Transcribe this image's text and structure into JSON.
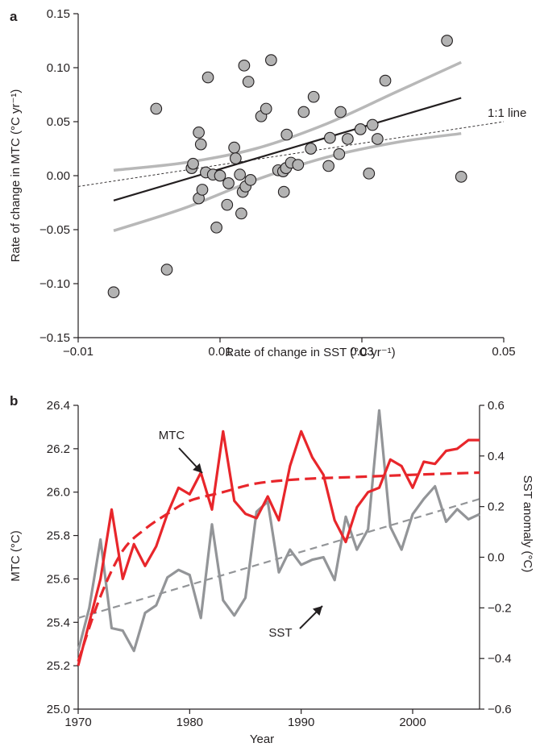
{
  "chart_data": [
    {
      "panel": "a",
      "type": "scatter",
      "xlabel": "Rate of change in SST (°C yr⁻¹)",
      "ylabel": "Rate of change in MTC (°C yr⁻¹)",
      "xlim": [
        -0.01,
        0.05
      ],
      "ylim": [
        -0.15,
        0.15
      ],
      "xticks": [
        -0.01,
        0.01,
        0.03,
        0.05
      ],
      "xtick_labels": [
        "−0.01",
        "0.01",
        "0.03",
        "0.05"
      ],
      "yticks": [
        -0.15,
        -0.1,
        -0.05,
        0.0,
        0.05,
        0.1,
        0.15
      ],
      "ytick_labels": [
        "−0.15",
        "−0.10",
        "−0.05",
        "0.00",
        "0.05",
        "0.10",
        "0.15"
      ],
      "points": [
        [
          -0.005,
          -0.108
        ],
        [
          0.001,
          0.062
        ],
        [
          0.0025,
          -0.087
        ],
        [
          0.006,
          0.007
        ],
        [
          0.0062,
          0.011
        ],
        [
          0.007,
          0.04
        ],
        [
          0.007,
          -0.021
        ],
        [
          0.0073,
          0.029
        ],
        [
          0.0075,
          -0.013
        ],
        [
          0.008,
          0.003
        ],
        [
          0.0083,
          0.091
        ],
        [
          0.009,
          0.001
        ],
        [
          0.0095,
          -0.048
        ],
        [
          0.01,
          0.0
        ],
        [
          0.011,
          -0.027
        ],
        [
          0.0112,
          -0.007
        ],
        [
          0.012,
          0.026
        ],
        [
          0.0122,
          0.016
        ],
        [
          0.0128,
          0.001
        ],
        [
          0.013,
          -0.035
        ],
        [
          0.0132,
          -0.015
        ],
        [
          0.0134,
          0.102
        ],
        [
          0.0136,
          -0.01
        ],
        [
          0.014,
          0.087
        ],
        [
          0.0143,
          -0.004
        ],
        [
          0.0158,
          0.055
        ],
        [
          0.0165,
          0.062
        ],
        [
          0.0172,
          0.107
        ],
        [
          0.0182,
          0.005
        ],
        [
          0.0189,
          0.004
        ],
        [
          0.019,
          -0.015
        ],
        [
          0.0193,
          0.007
        ],
        [
          0.0194,
          0.038
        ],
        [
          0.02,
          0.012
        ],
        [
          0.021,
          0.01
        ],
        [
          0.0218,
          0.059
        ],
        [
          0.0228,
          0.025
        ],
        [
          0.0232,
          0.073
        ],
        [
          0.0253,
          0.009
        ],
        [
          0.0255,
          0.035
        ],
        [
          0.0268,
          0.02
        ],
        [
          0.027,
          0.059
        ],
        [
          0.028,
          0.034
        ],
        [
          0.0298,
          0.043
        ],
        [
          0.031,
          0.002
        ],
        [
          0.0315,
          0.047
        ],
        [
          0.0322,
          0.034
        ],
        [
          0.0333,
          0.088
        ],
        [
          0.042,
          0.125
        ],
        [
          0.044,
          -0.001
        ]
      ],
      "fit_line": [
        [
          -0.005,
          -0.023
        ],
        [
          0.044,
          0.072
        ]
      ],
      "ci_upper": [
        [
          -0.005,
          0.005
        ],
        [
          0.005,
          0.012
        ],
        [
          0.015,
          0.025
        ],
        [
          0.025,
          0.048
        ],
        [
          0.035,
          0.078
        ],
        [
          0.044,
          0.105
        ]
      ],
      "ci_lower": [
        [
          -0.005,
          -0.051
        ],
        [
          0.005,
          -0.03
        ],
        [
          0.015,
          -0.004
        ],
        [
          0.025,
          0.017
        ],
        [
          0.035,
          0.031
        ],
        [
          0.044,
          0.039
        ]
      ],
      "one_to_one_label": "1:1 line",
      "colors": {
        "points": "#b3b3b3",
        "fit": "#231f20",
        "ci": "#b8b8b8"
      }
    },
    {
      "panel": "b",
      "type": "line",
      "xlabel": "Year",
      "ylabel_left": "MTC (°C)",
      "ylabel_right": "SST anomaly (°C)",
      "xlim": [
        1970,
        2006
      ],
      "ylim_left": [
        25.0,
        26.4
      ],
      "ylim_right": [
        -0.6,
        0.6
      ],
      "xticks": [
        1970,
        1980,
        1990,
        2000
      ],
      "yticks_left": [
        "25.0",
        "25.2",
        "25.4",
        "25.6",
        "25.8",
        "26.0",
        "26.2",
        "26.4"
      ],
      "yticks_right": [
        "−0.6",
        "−0.4",
        "−0.2",
        "0.0",
        "0.2",
        "0.4",
        "0.6"
      ],
      "x": [
        1970,
        1971,
        1972,
        1973,
        1974,
        1975,
        1976,
        1977,
        1978,
        1979,
        1980,
        1981,
        1982,
        1983,
        1984,
        1985,
        1986,
        1987,
        1988,
        1989,
        1990,
        1991,
        1992,
        1993,
        1994,
        1995,
        1996,
        1997,
        1998,
        1999,
        2000,
        2001,
        2002,
        2003,
        2004,
        2005,
        2006
      ],
      "series": [
        {
          "name": "MTC",
          "axis": "left",
          "color": "#e8262b",
          "values": [
            25.2,
            25.4,
            25.6,
            25.92,
            25.6,
            25.76,
            25.66,
            25.75,
            25.9,
            26.02,
            25.99,
            26.09,
            25.92,
            26.28,
            25.96,
            25.9,
            25.88,
            25.98,
            25.87,
            26.12,
            26.28,
            26.16,
            26.08,
            25.87,
            25.77,
            25.93,
            26.0,
            26.02,
            26.15,
            26.12,
            26.02,
            26.14,
            26.13,
            26.19,
            26.2,
            26.24,
            26.24
          ],
          "trend_dashed": [
            [
              1970,
              25.22
            ],
            [
              1972,
              25.52
            ],
            [
              1974,
              25.73
            ],
            [
              1976,
              25.83
            ],
            [
              1978,
              25.9
            ],
            [
              1980,
              25.96
            ],
            [
              1983,
              26.0
            ],
            [
              1986,
              26.04
            ],
            [
              1990,
              26.06
            ],
            [
              1995,
              26.07
            ],
            [
              2000,
              26.08
            ],
            [
              2006,
              26.09
            ]
          ]
        },
        {
          "name": "SST",
          "axis": "right",
          "color": "#939598",
          "values": [
            -0.37,
            -0.2,
            0.07,
            -0.28,
            -0.29,
            -0.37,
            -0.22,
            -0.19,
            -0.08,
            -0.05,
            -0.07,
            -0.24,
            0.13,
            -0.17,
            -0.23,
            -0.16,
            0.18,
            0.22,
            -0.06,
            0.03,
            -0.03,
            -0.01,
            0.0,
            -0.09,
            0.16,
            0.03,
            0.11,
            0.58,
            0.12,
            0.03,
            0.17,
            0.23,
            0.28,
            0.14,
            0.19,
            0.15,
            0.17
          ],
          "trend_dashed": [
            [
              1970,
              -0.24
            ],
            [
              2006,
              0.23
            ]
          ]
        }
      ],
      "annotations": [
        "MTC",
        "SST"
      ]
    }
  ],
  "panel_labels": [
    "a",
    "b"
  ]
}
